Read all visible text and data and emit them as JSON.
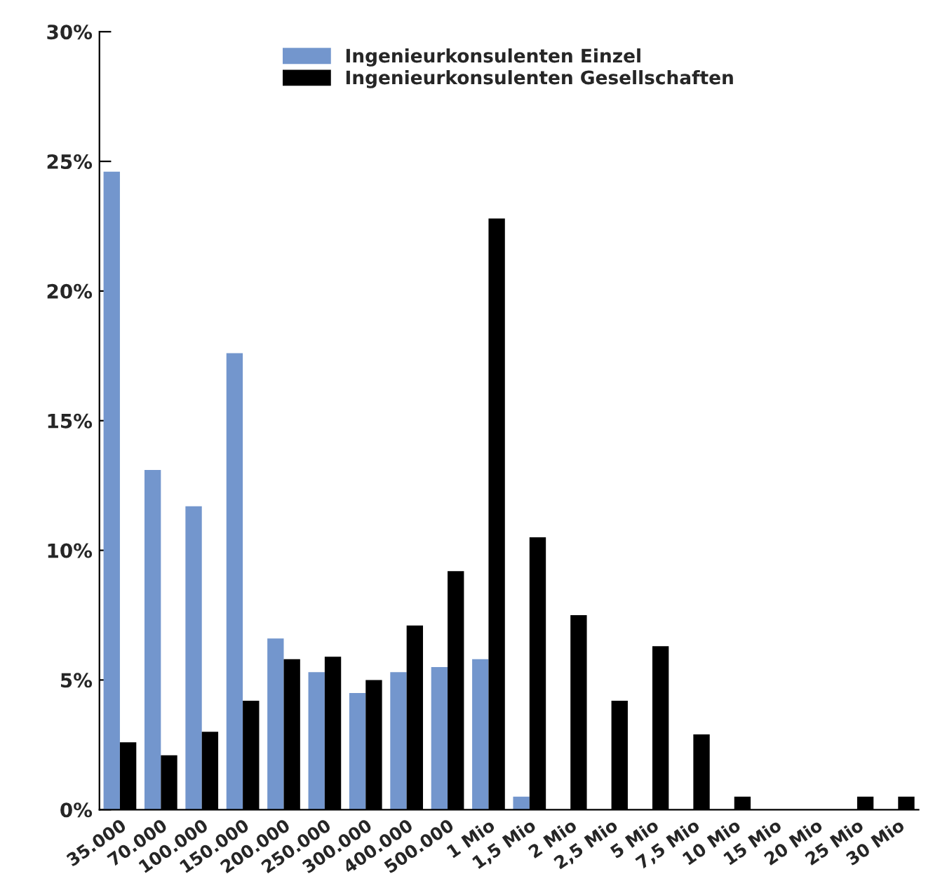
{
  "chart_data": {
    "type": "bar",
    "categories": [
      "35.000",
      "70.000",
      "100.000",
      "150.000",
      "200.000",
      "250.000",
      "300.000",
      "400.000",
      "500.000",
      "1 Mio",
      "1,5 Mio",
      "2 Mio",
      "2,5 Mio",
      "5 Mio",
      "7,5 Mio",
      "10 Mio",
      "15 Mio",
      "20 Mio",
      "25 Mio",
      "30 Mio"
    ],
    "series": [
      {
        "name": "Ingenieurkonsulenten Einzel",
        "color": "#7396cd",
        "values": [
          24.6,
          13.1,
          11.7,
          17.6,
          6.6,
          5.3,
          4.5,
          5.3,
          5.5,
          5.8,
          0.5,
          0,
          0,
          0,
          0,
          0,
          0,
          0,
          0,
          0
        ]
      },
      {
        "name": "Ingenieurkonsulenten Gesellschaften",
        "color": "#000000",
        "values": [
          2.6,
          2.1,
          3.0,
          4.2,
          5.8,
          5.9,
          5.0,
          7.1,
          9.2,
          22.8,
          10.5,
          7.5,
          4.2,
          6.3,
          2.9,
          0.5,
          0,
          0,
          0.5,
          0.5
        ]
      }
    ],
    "ylim": [
      0,
      30
    ],
    "yticks": [
      {
        "value": 0,
        "label": "0%"
      },
      {
        "value": 5,
        "label": "5%"
      },
      {
        "value": 10,
        "label": "10%"
      },
      {
        "value": 15,
        "label": "15%"
      },
      {
        "value": 20,
        "label": "20%"
      },
      {
        "value": 25,
        "label": "25%"
      },
      {
        "value": 30,
        "label": "30%"
      }
    ],
    "grid": false,
    "legend": "top"
  }
}
